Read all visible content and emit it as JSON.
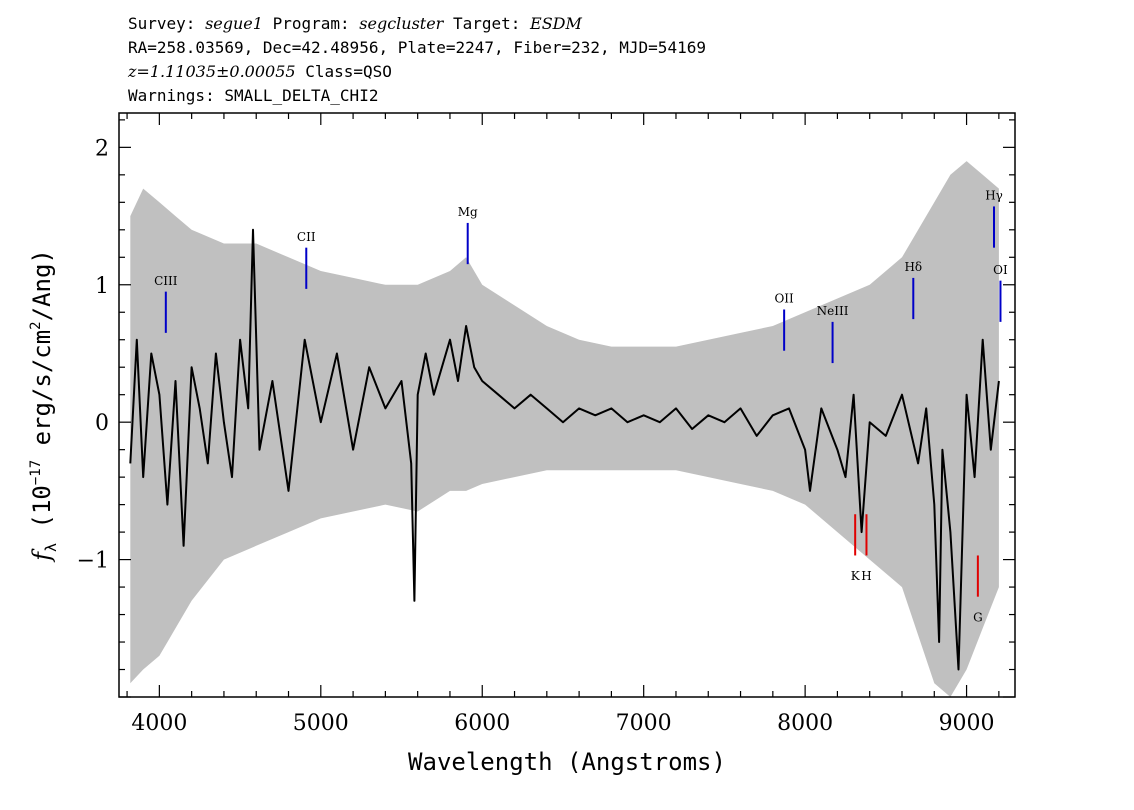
{
  "header": {
    "line1_a": "Survey: ",
    "line1_b": "segue1",
    "line1_c": " Program: ",
    "line1_d": "segcluster",
    "line1_e": " Target: ",
    "line1_f": "ESDM",
    "line2": "RA=258.03569, Dec=42.48956, Plate=2247, Fiber=232, MJD=54169",
    "line3_a": "z=1.11035±0.00055",
    "line3_b": " Class=QSO",
    "line4": "Warnings: SMALL_DELTA_CHI2"
  },
  "chart_data": {
    "type": "line",
    "xlabel": "Wavelength (Angstroms)",
    "ylabel_parts": {
      "f": "f",
      "sub": "λ",
      "a": " (10",
      "exp1": "−17",
      "b": " erg/s/cm",
      "exp2": "2",
      "c": "/Ang)"
    },
    "xlim": [
      3750,
      9300
    ],
    "ylim": [
      -2.0,
      2.25
    ],
    "xticks": [
      4000,
      5000,
      6000,
      7000,
      8000,
      9000
    ],
    "xtick_labels": [
      "4000",
      "5000",
      "6000",
      "7000",
      "8000",
      "9000"
    ],
    "yticks": [
      -1,
      0,
      1,
      2
    ],
    "ytick_labels": [
      "−1",
      "0",
      "1",
      "2"
    ],
    "series": [
      {
        "style": "error band",
        "color": "#c0c0c0",
        "x": [
          3820,
          3900,
          4000,
          4100,
          4200,
          4400,
          4600,
          4800,
          5000,
          5200,
          5400,
          5600,
          5800,
          5900,
          6000,
          6200,
          6400,
          6600,
          6800,
          7000,
          7200,
          7400,
          7600,
          7800,
          8000,
          8200,
          8400,
          8600,
          8800,
          8900,
          9000,
          9100,
          9200
        ],
        "y_upper": [
          1.5,
          1.7,
          1.6,
          1.5,
          1.4,
          1.3,
          1.3,
          1.2,
          1.1,
          1.05,
          1.0,
          1.0,
          1.1,
          1.2,
          1.0,
          0.85,
          0.7,
          0.6,
          0.55,
          0.55,
          0.55,
          0.6,
          0.65,
          0.7,
          0.8,
          0.9,
          1.0,
          1.2,
          1.6,
          1.8,
          1.9,
          1.8,
          1.7
        ],
        "y_lower": [
          -1.9,
          -1.8,
          -1.7,
          -1.5,
          -1.3,
          -1.0,
          -0.9,
          -0.8,
          -0.7,
          -0.65,
          -0.6,
          -0.65,
          -0.5,
          -0.5,
          -0.45,
          -0.4,
          -0.35,
          -0.35,
          -0.35,
          -0.35,
          -0.35,
          -0.4,
          -0.45,
          -0.5,
          -0.6,
          -0.8,
          -1.0,
          -1.2,
          -1.9,
          -2.0,
          -1.8,
          -1.5,
          -1.2
        ]
      },
      {
        "style": "flux",
        "color": "#000000",
        "x": [
          3820,
          3860,
          3900,
          3950,
          4000,
          4050,
          4100,
          4150,
          4200,
          4250,
          4300,
          4350,
          4400,
          4450,
          4500,
          4550,
          4580,
          4620,
          4700,
          4800,
          4900,
          5000,
          5100,
          5200,
          5300,
          5400,
          5500,
          5560,
          5580,
          5600,
          5650,
          5700,
          5800,
          5850,
          5900,
          5950,
          6000,
          6100,
          6200,
          6300,
          6400,
          6500,
          6600,
          6700,
          6800,
          6900,
          7000,
          7100,
          7200,
          7300,
          7400,
          7500,
          7600,
          7700,
          7800,
          7900,
          8000,
          8030,
          8100,
          8200,
          8250,
          8300,
          8350,
          8400,
          8500,
          8600,
          8700,
          8750,
          8800,
          8830,
          8850,
          8900,
          8950,
          9000,
          9050,
          9100,
          9150,
          9200
        ],
        "y": [
          -0.3,
          0.6,
          -0.4,
          0.5,
          0.2,
          -0.6,
          0.3,
          -0.9,
          0.4,
          0.1,
          -0.3,
          0.5,
          0.0,
          -0.4,
          0.6,
          0.1,
          1.4,
          -0.2,
          0.3,
          -0.5,
          0.6,
          0.0,
          0.5,
          -0.2,
          0.4,
          0.1,
          0.3,
          -0.3,
          -1.3,
          0.2,
          0.5,
          0.2,
          0.6,
          0.3,
          0.7,
          0.4,
          0.3,
          0.2,
          0.1,
          0.2,
          0.1,
          0.0,
          0.1,
          0.05,
          0.1,
          0.0,
          0.05,
          0.0,
          0.1,
          -0.05,
          0.05,
          0.0,
          0.1,
          -0.1,
          0.05,
          0.1,
          -0.2,
          -0.5,
          0.1,
          -0.2,
          -0.4,
          0.2,
          -0.8,
          0.0,
          -0.1,
          0.2,
          -0.3,
          0.1,
          -0.6,
          -1.6,
          -0.2,
          -0.8,
          -1.8,
          0.2,
          -0.4,
          0.6,
          -0.2,
          0.3
        ]
      }
    ],
    "emission_lines": [
      {
        "label": "CIII",
        "x": 4040,
        "y0": 0.65,
        "y1": 0.95,
        "label_y": 1.0
      },
      {
        "label": "CII",
        "x": 4910,
        "y0": 0.97,
        "y1": 1.27,
        "label_y": 1.32
      },
      {
        "label": "Mg",
        "x": 5910,
        "y0": 1.15,
        "y1": 1.45,
        "label_y": 1.5
      },
      {
        "label": "OII",
        "x": 7870,
        "y0": 0.52,
        "y1": 0.82,
        "label_y": 0.87
      },
      {
        "label": "NeIII",
        "x": 8170,
        "y0": 0.43,
        "y1": 0.73,
        "label_y": 0.78
      },
      {
        "label": "Hδ",
        "x": 8670,
        "y0": 0.75,
        "y1": 1.05,
        "label_y": 1.1
      },
      {
        "label": "Hγ",
        "x": 9170,
        "y0": 1.27,
        "y1": 1.57,
        "label_y": 1.62
      },
      {
        "label": "OI",
        "x": 9210,
        "y0": 0.73,
        "y1": 1.03,
        "label_y": 1.08
      }
    ],
    "absorption_lines": [
      {
        "label": "K",
        "x": 8310,
        "y0": -0.97,
        "y1": -0.67,
        "label_y": -1.15
      },
      {
        "label": "H",
        "x": 8380,
        "y0": -0.97,
        "y1": -0.67,
        "label_y": -1.15
      },
      {
        "label": "G",
        "x": 9070,
        "y0": -1.27,
        "y1": -0.97,
        "label_y": -1.45
      }
    ],
    "emission_color": "#0000c8",
    "absorption_color": "#e00000"
  }
}
